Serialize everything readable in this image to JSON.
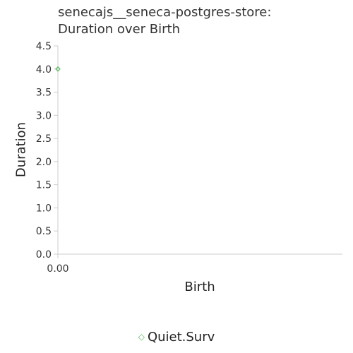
{
  "chart_data": {
    "type": "scatter",
    "title_line1": "senecajs__seneca-postgres-store:",
    "title_line2": "Duration over Birth",
    "xlabel": "Birth",
    "ylabel": "Duration",
    "xlim": [
      0,
      1
    ],
    "ylim": [
      0,
      4.5
    ],
    "x_ticks": [
      "0.00"
    ],
    "y_ticks": [
      "0.0",
      "0.5",
      "1.0",
      "1.5",
      "2.0",
      "2.5",
      "3.0",
      "3.5",
      "4.0",
      "4.5"
    ],
    "grid": false,
    "legend_position": "bottom",
    "series": [
      {
        "name": "Quiet.Surv",
        "color": "#5cb85c",
        "marker": "diamond-open",
        "points": [
          {
            "x": 0,
            "y": 4.0
          }
        ]
      }
    ]
  },
  "colors": {
    "axis": "#cccccc",
    "series": "#5cb85c"
  }
}
